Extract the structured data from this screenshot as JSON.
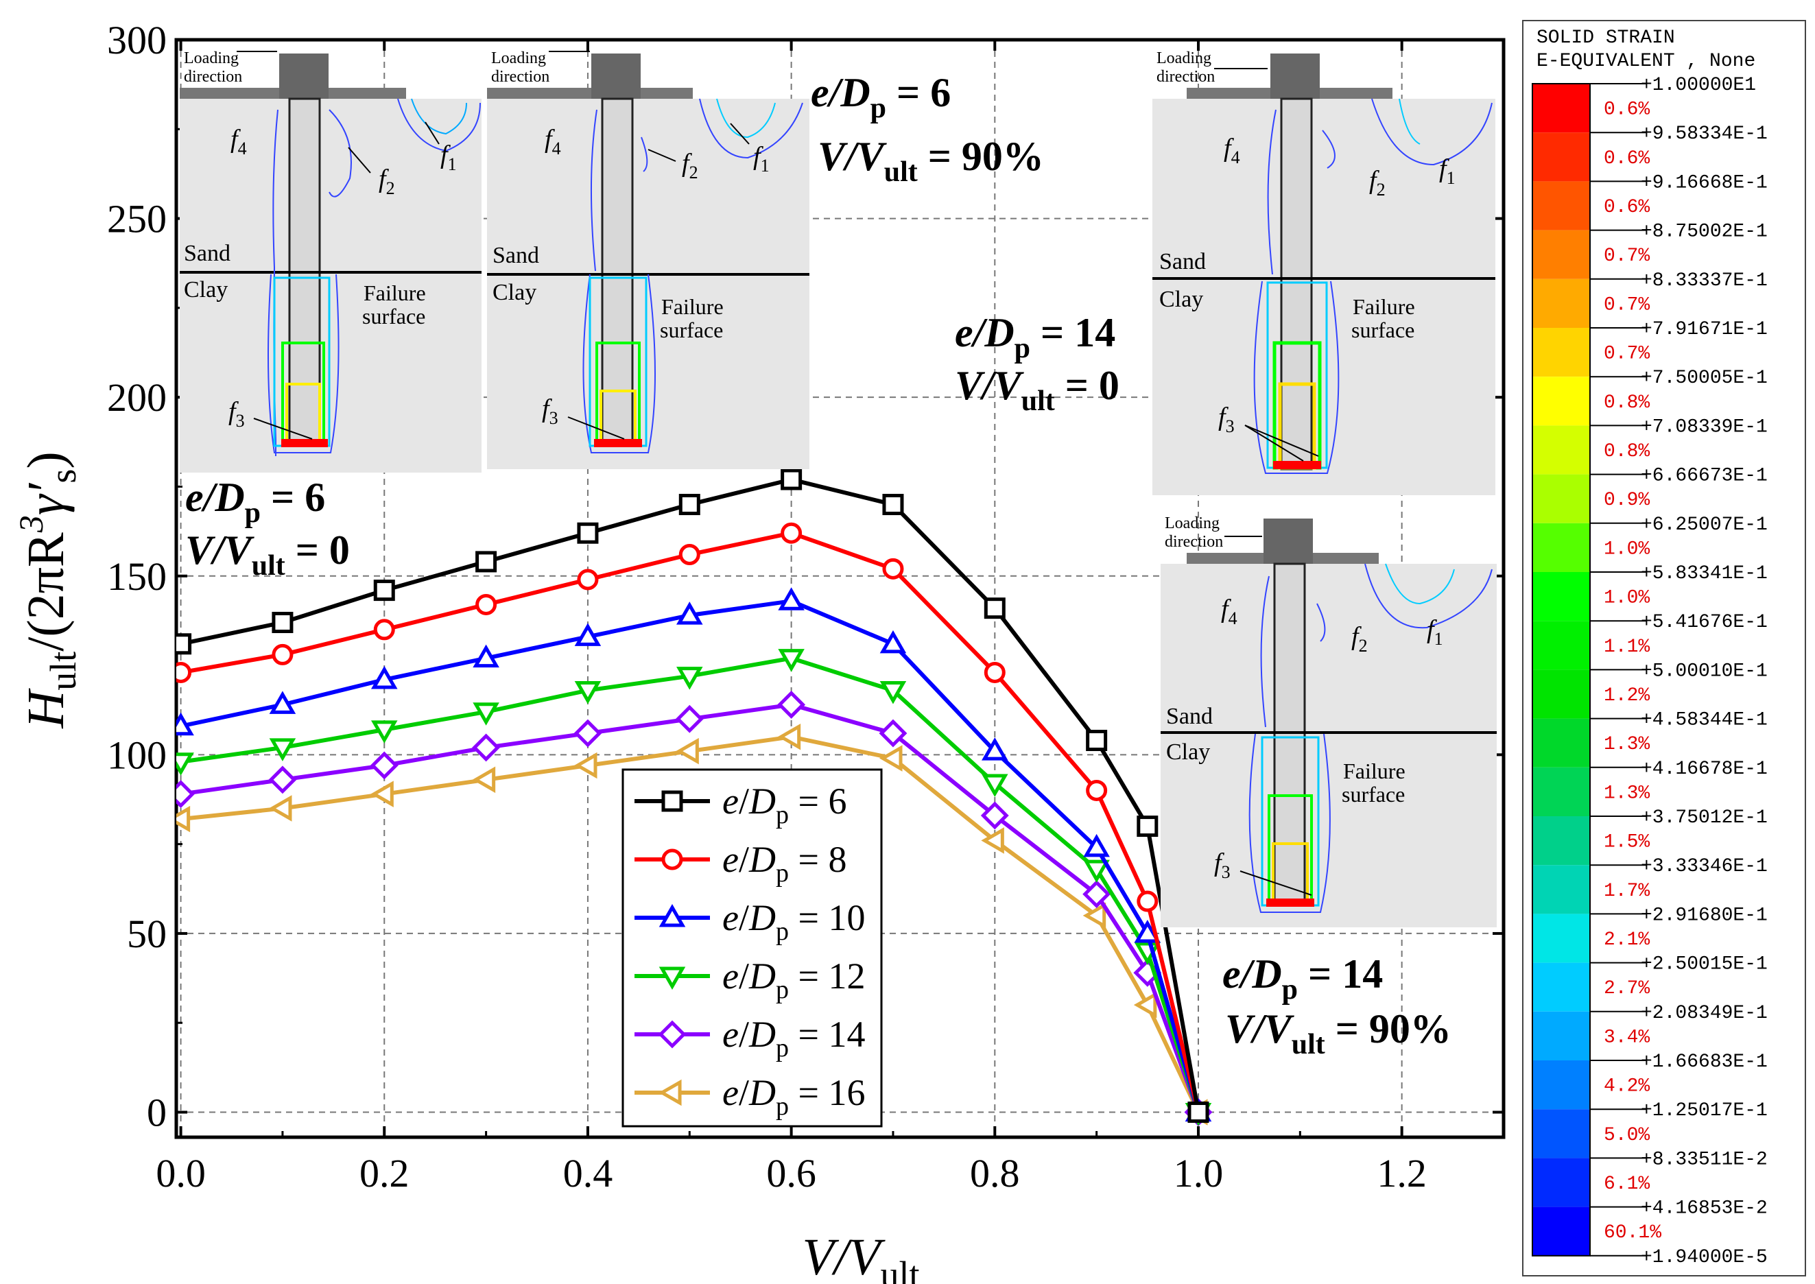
{
  "chart_data": {
    "type": "line",
    "xlabel": {
      "main": "V/V",
      "sub": "ult"
    },
    "ylabel": {
      "pre": "H",
      "sub": "ult",
      "post": "/(2πR",
      "sup": "3",
      "greek": "γ′",
      "sub2": "s",
      "close": ")"
    },
    "xlim": [
      0,
      1.3
    ],
    "ylim": [
      -7,
      300
    ],
    "xticks": [
      0.0,
      0.2,
      0.4,
      0.6,
      0.8,
      1.0,
      1.2
    ],
    "xtick_labels": [
      "0.0",
      "0.2",
      "0.4",
      "0.6",
      "0.8",
      "1.0",
      "1.2"
    ],
    "yticks": [
      0,
      50,
      100,
      150,
      200,
      250,
      300
    ],
    "ytick_labels": [
      "0",
      "50",
      "100",
      "150",
      "200",
      "250",
      "300"
    ],
    "grid": true,
    "legend_position": "lower-center",
    "x": [
      0,
      0.1,
      0.2,
      0.3,
      0.4,
      0.5,
      0.6,
      0.7,
      0.8,
      0.9,
      0.95,
      1.0
    ],
    "series": [
      {
        "name": "e/Dp = 6",
        "legend": {
          "e": "e",
          "D": "D",
          "sub": "p",
          "val": "= 6"
        },
        "color": "#000000",
        "marker": "square",
        "values": [
          131,
          137,
          146,
          154,
          162,
          170,
          177,
          170,
          141,
          104,
          80,
          0
        ]
      },
      {
        "name": "e/Dp = 8",
        "legend": {
          "e": "e",
          "D": "D",
          "sub": "p",
          "val": "= 8"
        },
        "color": "#ff0000",
        "marker": "circle",
        "values": [
          123,
          128,
          135,
          142,
          149,
          156,
          162,
          152,
          123,
          90,
          59,
          0
        ]
      },
      {
        "name": "e/Dp = 10",
        "legend": {
          "e": "e",
          "D": "D",
          "sub": "p",
          "val": "= 10"
        },
        "color": "#0000ff",
        "marker": "triangle-up",
        "values": [
          108,
          114,
          121,
          127,
          133,
          139,
          143,
          131,
          101,
          74,
          50,
          0
        ]
      },
      {
        "name": "e/Dp = 12",
        "legend": {
          "e": "e",
          "D": "D",
          "sub": "p",
          "val": "= 12"
        },
        "color": "#00cc00",
        "marker": "triangle-down",
        "values": [
          98,
          102,
          107,
          112,
          118,
          122,
          127,
          118,
          92,
          68,
          45,
          0
        ]
      },
      {
        "name": "e/Dp = 14",
        "legend": {
          "e": "e",
          "D": "D",
          "sub": "p",
          "val": "= 14"
        },
        "color": "#8b00ff",
        "marker": "diamond",
        "values": [
          89,
          93,
          97,
          102,
          106,
          110,
          114,
          106,
          83,
          61,
          39,
          0
        ]
      },
      {
        "name": "e/Dp = 16",
        "legend": {
          "e": "e",
          "D": "D",
          "sub": "p",
          "val": "= 16"
        },
        "color": "#e0a83c",
        "marker": "triangle-left",
        "values": [
          82,
          85,
          89,
          93,
          97,
          101,
          105,
          99,
          76,
          55,
          30,
          0
        ]
      }
    ],
    "annotations": [
      {
        "id": "a1",
        "l1": {
          "e": "e",
          "D": "D",
          "sub": "p",
          "val": " = 6"
        },
        "l2": {
          "v": "V/V",
          "sub": "ult",
          "val": " = 0"
        }
      },
      {
        "id": "a2",
        "l1": {
          "e": "e",
          "D": "D",
          "sub": "p",
          "val": " = 6"
        },
        "l2": {
          "v": "V/V",
          "sub": "ult",
          "val": " = 90%"
        }
      },
      {
        "id": "a3",
        "l1": {
          "e": "e",
          "D": "D",
          "sub": "p",
          "val": " = 14"
        },
        "l2": {
          "v": "V/V",
          "sub": "ult",
          "val": " = 0"
        }
      },
      {
        "id": "a4",
        "l1": {
          "e": "e",
          "D": "D",
          "sub": "p",
          "val": " = 14"
        },
        "l2": {
          "v": "V/V",
          "sub": "ult",
          "val": " = 90%"
        }
      }
    ]
  },
  "insets": {
    "loading_label_1": "Loading",
    "loading_label_2": "direction",
    "sand": "Sand",
    "clay": "Clay",
    "failure_1": "Failure",
    "failure_2": "surface",
    "f_letter": "f",
    "f_subs": [
      "1",
      "2",
      "3",
      "4"
    ]
  },
  "colorbar": {
    "title1": "SOLID STRAIN",
    "title2": "E-EQUIVALENT , None",
    "values": [
      "+1.00000E1",
      "+9.58334E-1",
      "+9.16668E-1",
      "+8.75002E-1",
      "+8.33337E-1",
      "+7.91671E-1",
      "+7.50005E-1",
      "+7.08339E-1",
      "+6.66673E-1",
      "+6.25007E-1",
      "+5.83341E-1",
      "+5.41676E-1",
      "+5.00010E-1",
      "+4.58344E-1",
      "+4.16678E-1",
      "+3.75012E-1",
      "+3.33346E-1",
      "+2.91680E-1",
      "+2.50015E-1",
      "+2.08349E-1",
      "+1.66683E-1",
      "+1.25017E-1",
      "+8.33511E-2",
      "+4.16853E-2",
      "+1.94000E-5"
    ],
    "percents": [
      "0.6%",
      "0.6%",
      "0.6%",
      "0.7%",
      "0.7%",
      "0.7%",
      "0.8%",
      "0.8%",
      "0.9%",
      "1.0%",
      "1.0%",
      "1.1%",
      "1.2%",
      "1.3%",
      "1.3%",
      "1.5%",
      "1.7%",
      "2.1%",
      "2.7%",
      "3.4%",
      "4.2%",
      "5.0%",
      "6.1%",
      "60.1%"
    ],
    "colors": [
      "#ff0000",
      "#ff2a00",
      "#ff5500",
      "#ff7f00",
      "#ffaa00",
      "#ffd400",
      "#ffff00",
      "#d4ff00",
      "#aaff00",
      "#55ff00",
      "#00ff00",
      "#00f000",
      "#00e400",
      "#00d82a",
      "#00d455",
      "#00d08a",
      "#00d4b4",
      "#00e6e6",
      "#00ccff",
      "#00aaff",
      "#0080ff",
      "#0055ff",
      "#002aff",
      "#0000ff"
    ]
  }
}
